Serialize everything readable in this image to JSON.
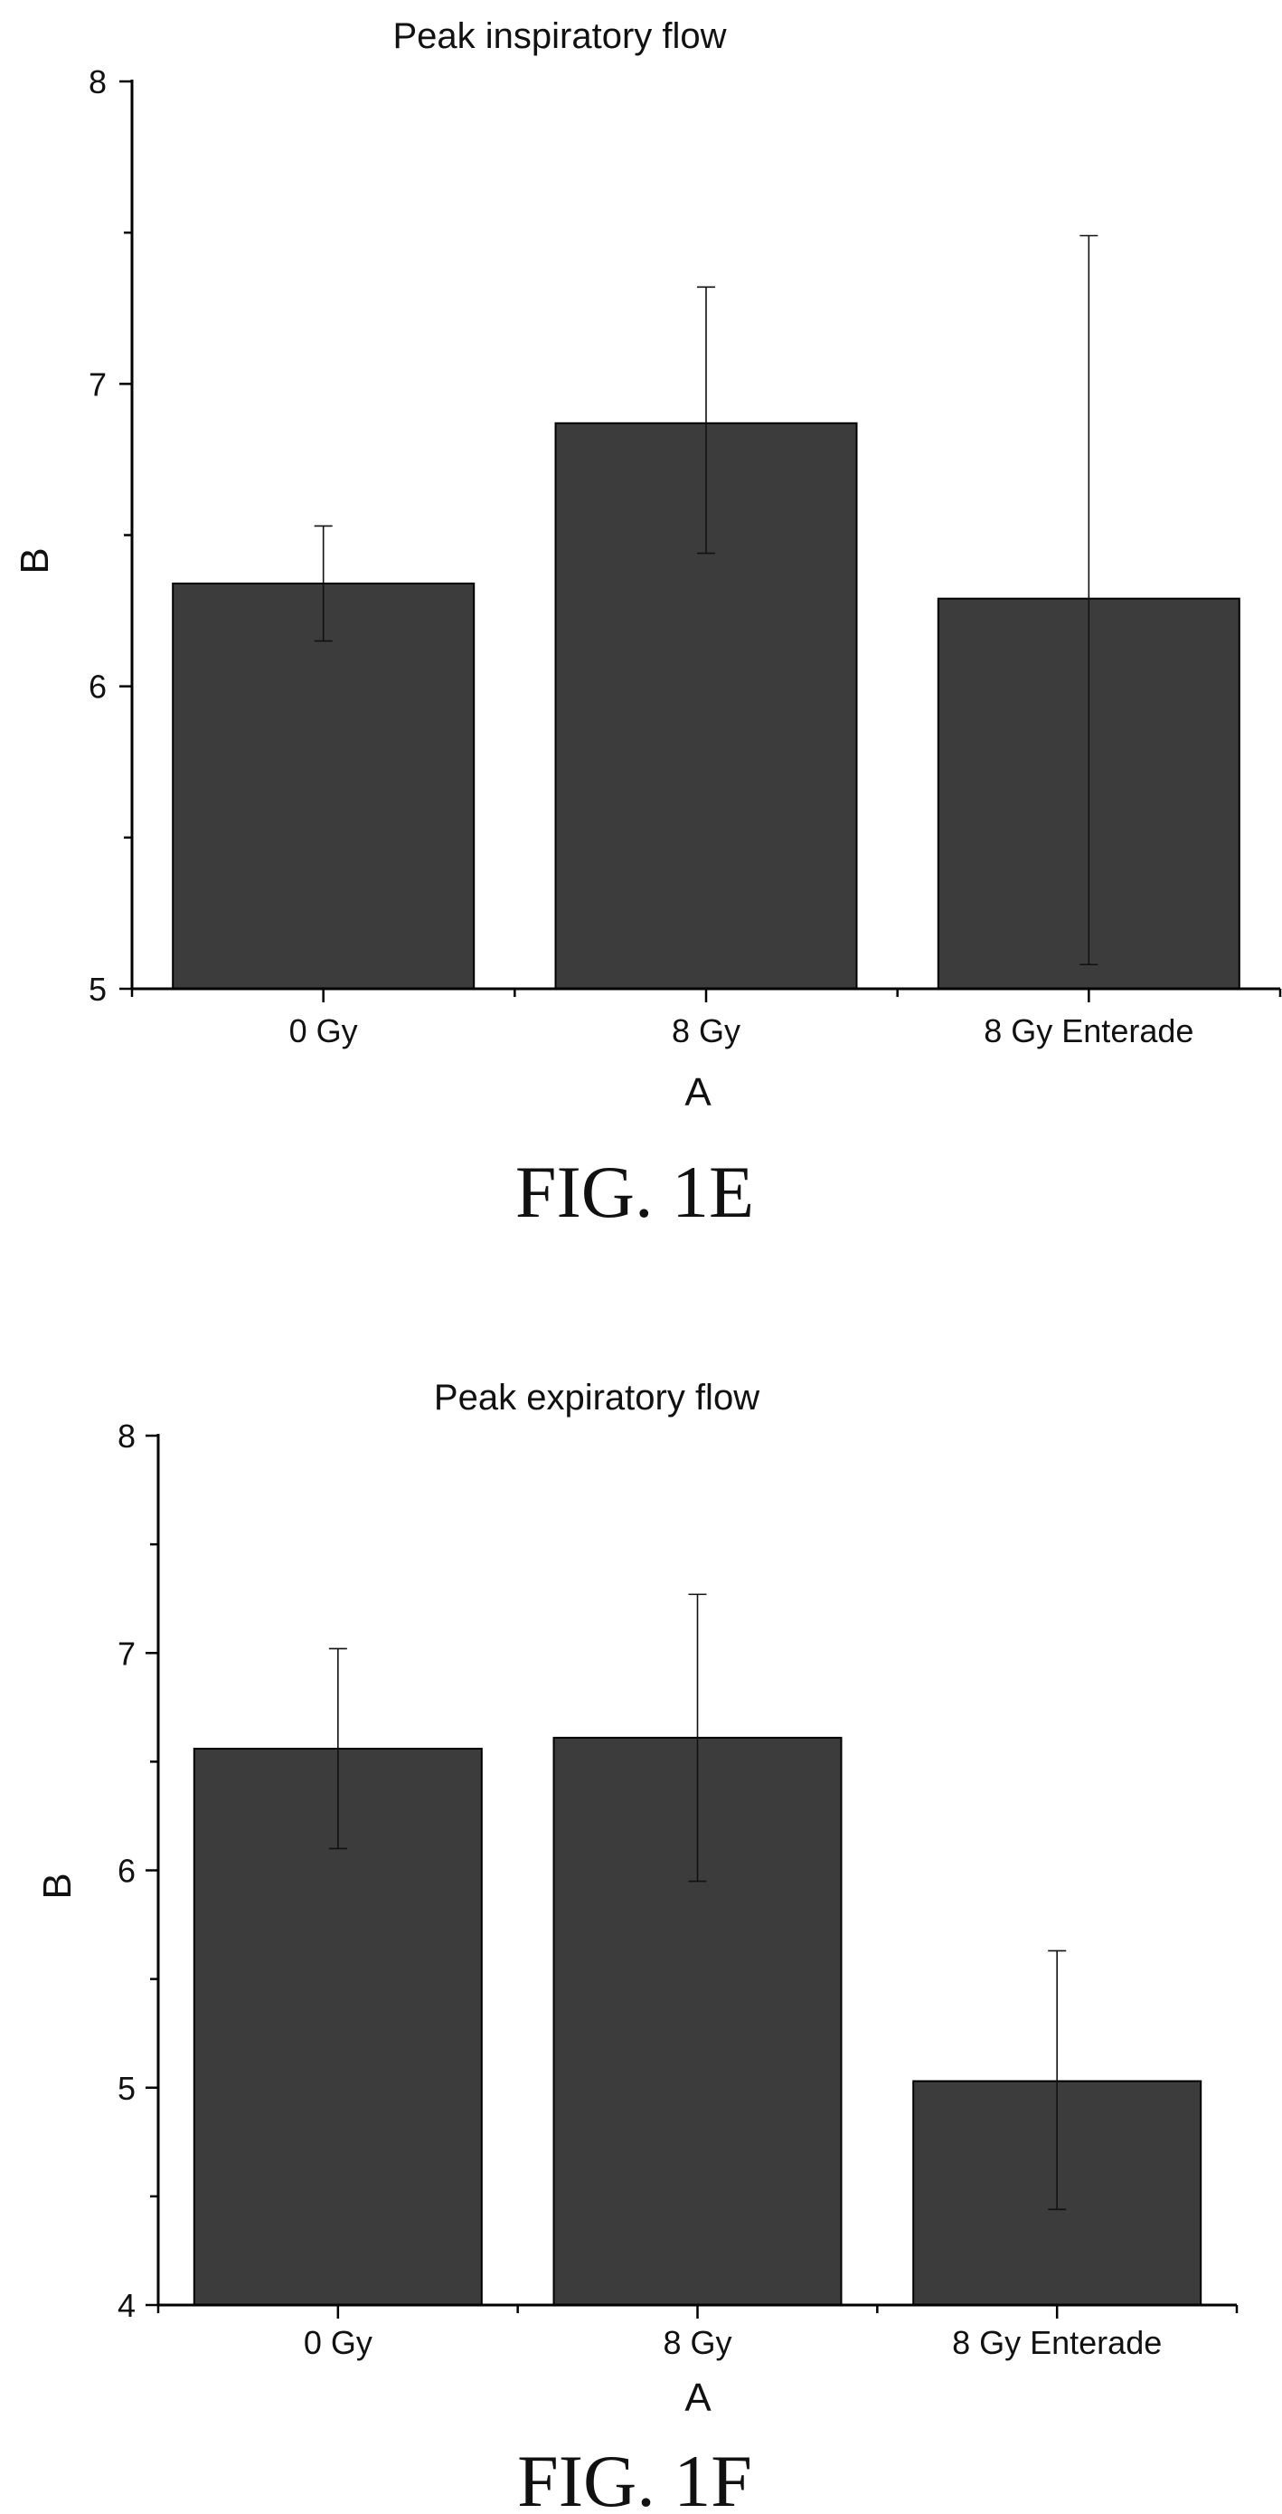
{
  "chart_data": [
    {
      "type": "bar",
      "title": "Peak inspiratory flow",
      "xlabel": "A",
      "ylabel": "B",
      "categories": [
        "0 Gy",
        "8 Gy",
        "8 Gy Enterade"
      ],
      "values": [
        6.34,
        6.87,
        6.29
      ],
      "error_low": [
        6.15,
        6.44,
        5.08
      ],
      "error_high": [
        6.53,
        7.32,
        7.49
      ],
      "ylim": [
        5,
        8
      ],
      "yticks": [
        "5",
        "6",
        "7",
        "8"
      ],
      "grid": false,
      "bar_color": "#3c3c3c",
      "caption": "FIG. 1E"
    },
    {
      "type": "bar",
      "title": "Peak expiratory flow",
      "xlabel": "A",
      "ylabel": "B",
      "categories": [
        "0 Gy",
        "8 Gy",
        "8 Gy Enterade"
      ],
      "values": [
        6.56,
        6.61,
        5.03
      ],
      "error_low": [
        6.1,
        5.95,
        4.44
      ],
      "error_high": [
        7.02,
        7.27,
        5.63
      ],
      "ylim": [
        4,
        8
      ],
      "yticks": [
        "4",
        "5",
        "6",
        "7",
        "8"
      ],
      "grid": false,
      "bar_color": "#3c3c3c",
      "caption": "FIG. 1F"
    }
  ]
}
